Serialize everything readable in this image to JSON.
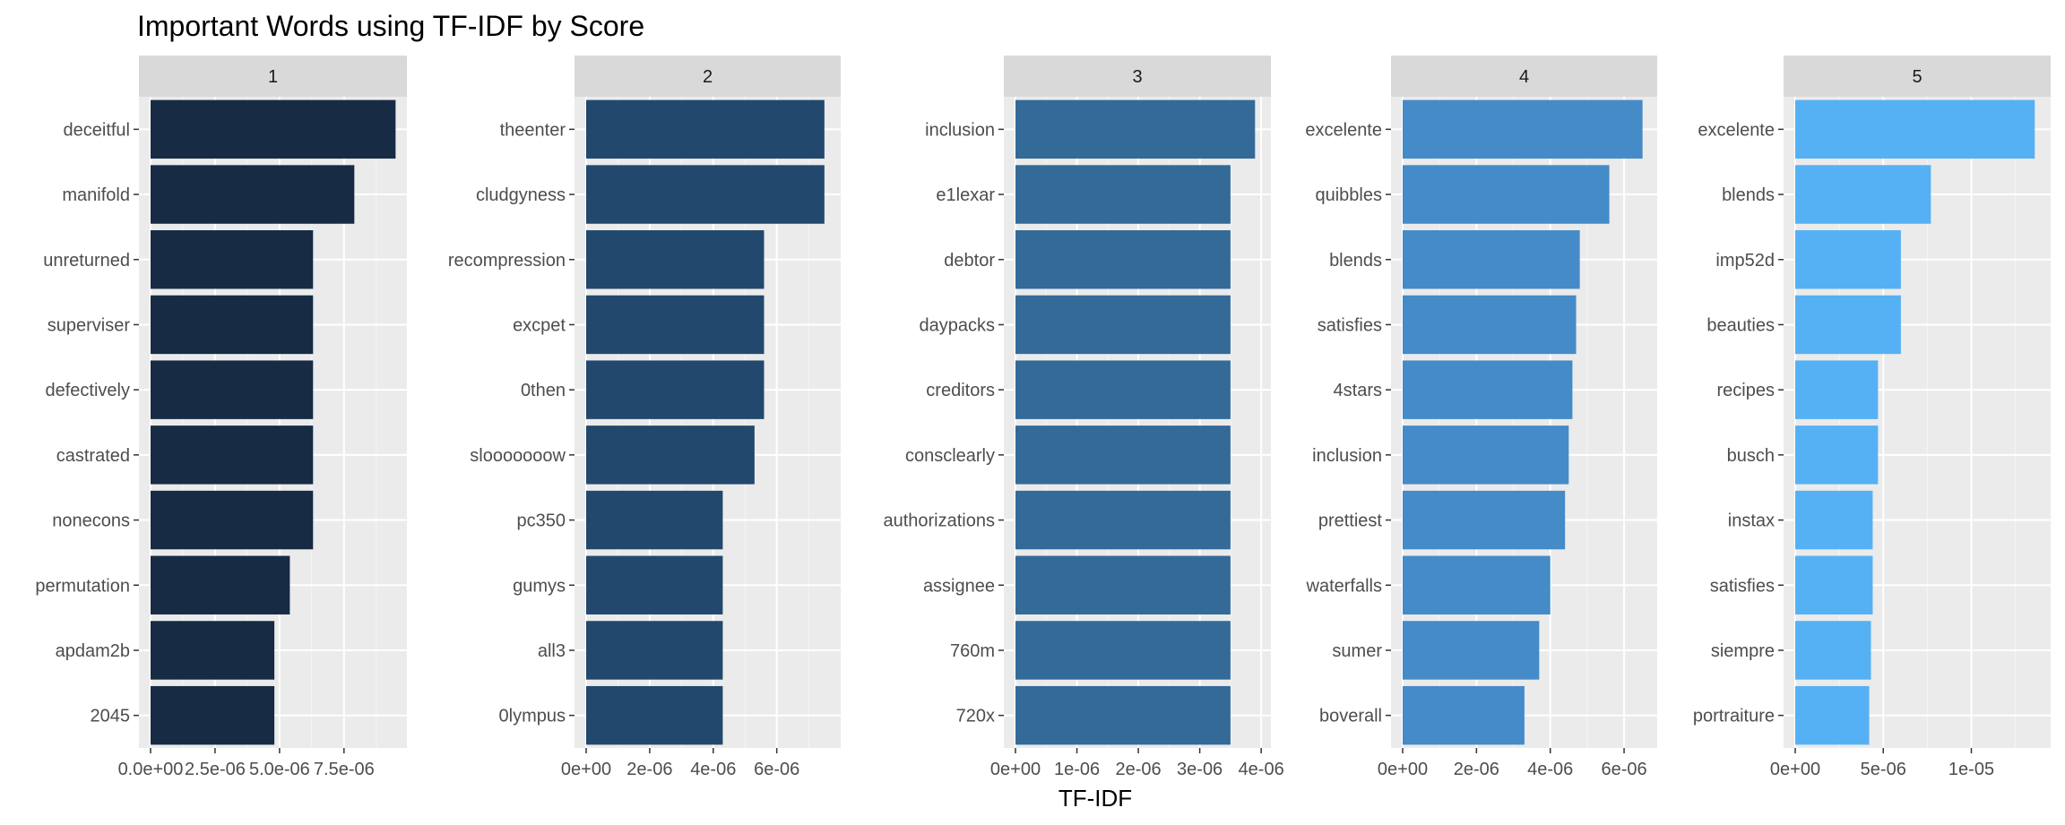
{
  "chart_data": {
    "type": "bar",
    "title": "Important Words using TF-IDF by Score",
    "xlabel": "TF-IDF",
    "ylabel": "",
    "orientation": "horizontal",
    "grid": true,
    "facets": [
      {
        "label": "1",
        "color": "#172B45",
        "xlim": [
          0,
          9.8e-06
        ],
        "xticks": [
          0,
          2.5e-06,
          5e-06,
          7.5e-06
        ],
        "xtick_labels": [
          "0.0e+00",
          "2.5e-06",
          "5.0e-06",
          "7.5e-06"
        ],
        "categories": [
          "deceitful",
          "manifold",
          "unreturned",
          "superviser",
          "defectively",
          "castrated",
          "nonecons",
          "permutation",
          "apdam2b",
          "2045"
        ],
        "values": [
          9.5e-06,
          7.9e-06,
          6.3e-06,
          6.3e-06,
          6.3e-06,
          6.3e-06,
          6.3e-06,
          5.4e-06,
          4.8e-06,
          4.8e-06
        ]
      },
      {
        "label": "2",
        "color": "#23486D",
        "xlim": [
          0,
          7.9e-06
        ],
        "xticks": [
          0,
          2e-06,
          4e-06,
          6e-06
        ],
        "xtick_labels": [
          "0e+00",
          "2e-06",
          "4e-06",
          "6e-06"
        ],
        "categories": [
          "theenter",
          "cludgyness",
          "recompression",
          "excpet",
          "0then",
          "slooooooow",
          "pc350",
          "gumys",
          "all3",
          "0lympus"
        ],
        "values": [
          7.5e-06,
          7.5e-06,
          5.6e-06,
          5.6e-06,
          5.6e-06,
          5.3e-06,
          4.3e-06,
          4.3e-06,
          4.3e-06,
          4.3e-06
        ]
      },
      {
        "label": "3",
        "color": "#336A98",
        "xlim": [
          0,
          4.1e-06
        ],
        "xticks": [
          0,
          1e-06,
          2e-06,
          3e-06,
          4e-06
        ],
        "xtick_labels": [
          "0e+00",
          "1e-06",
          "2e-06",
          "3e-06",
          "4e-06"
        ],
        "categories": [
          "inclusion",
          "e1lexar",
          "debtor",
          "daypacks",
          "creditors",
          "consclearly",
          "authorizations",
          "assignee",
          "760m",
          "720x"
        ],
        "values": [
          3.9e-06,
          3.5e-06,
          3.5e-06,
          3.5e-06,
          3.5e-06,
          3.5e-06,
          3.5e-06,
          3.5e-06,
          3.5e-06,
          3.5e-06
        ]
      },
      {
        "label": "4",
        "color": "#448BC8",
        "xlim": [
          0,
          6.8e-06
        ],
        "xticks": [
          0,
          2e-06,
          4e-06,
          6e-06
        ],
        "xtick_labels": [
          "0e+00",
          "2e-06",
          "4e-06",
          "6e-06"
        ],
        "categories": [
          "excelente",
          "quibbles",
          "blends",
          "satisfies",
          "4stars",
          "inclusion",
          "prettiest",
          "waterfalls",
          "sumer",
          "boverall"
        ],
        "values": [
          6.5e-06,
          5.6e-06,
          4.8e-06,
          4.7e-06,
          4.6e-06,
          4.5e-06,
          4.4e-06,
          4e-06,
          3.7e-06,
          3.3e-06
        ]
      },
      {
        "label": "5",
        "color": "#55B1F3",
        "xlim": [
          0,
          1.43e-05
        ],
        "xticks": [
          0,
          5e-06,
          1e-05
        ],
        "xtick_labels": [
          "0e+00",
          "5e-06",
          "1e-05"
        ],
        "categories": [
          "excelente",
          "blends",
          "imp52d",
          "beauties",
          "recipes",
          "busch",
          "instax",
          "satisfies",
          "siempre",
          "portraiture"
        ],
        "values": [
          1.36e-05,
          7.7e-06,
          6e-06,
          6e-06,
          4.7e-06,
          4.7e-06,
          4.4e-06,
          4.4e-06,
          4.3e-06,
          4.2e-06
        ]
      }
    ]
  }
}
